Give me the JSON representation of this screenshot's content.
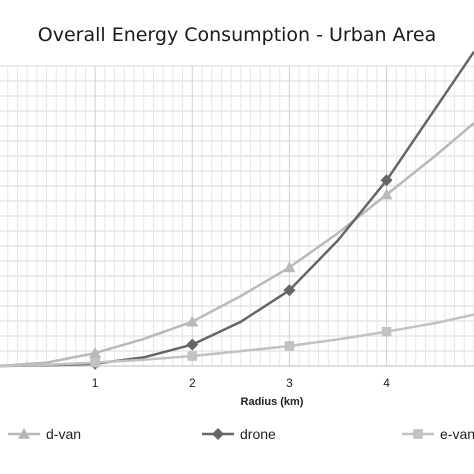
{
  "chart_data": {
    "type": "line",
    "title": "Overall Energy Consumption - Urban Area",
    "xlabel": "Radius (km)",
    "ylabel": "",
    "x_ticks": [
      "1",
      "2",
      "3",
      "4"
    ],
    "xlim": [
      0,
      4.9
    ],
    "grid": true,
    "legend_position": "bottom",
    "series": [
      {
        "name": "d-van",
        "marker": "triangle",
        "color": "#b9b9b9",
        "x": [
          1,
          2,
          3,
          4
        ],
        "values": [
          0.45,
          1.55,
          3.45,
          6.0
        ],
        "curve": [
          [
            0,
            0
          ],
          [
            0.5,
            0.12
          ],
          [
            1,
            0.45
          ],
          [
            1.5,
            0.95
          ],
          [
            2,
            1.55
          ],
          [
            2.5,
            2.45
          ],
          [
            3,
            3.45
          ],
          [
            3.5,
            4.65
          ],
          [
            4,
            6.0
          ],
          [
            4.5,
            7.35
          ],
          [
            4.9,
            8.5
          ]
        ]
      },
      {
        "name": "drone",
        "marker": "diamond",
        "color": "#666666",
        "x": [
          1,
          2,
          3,
          4
        ],
        "values": [
          0.08,
          0.75,
          2.65,
          6.5
        ],
        "curve": [
          [
            0,
            0
          ],
          [
            0.5,
            0.02
          ],
          [
            1,
            0.08
          ],
          [
            1.5,
            0.3
          ],
          [
            2,
            0.75
          ],
          [
            2.5,
            1.55
          ],
          [
            3,
            2.65
          ],
          [
            3.5,
            4.4
          ],
          [
            4,
            6.5
          ],
          [
            4.5,
            9.0
          ],
          [
            4.9,
            11.0
          ]
        ]
      },
      {
        "name": "e-van",
        "marker": "square",
        "color": "#c2c2c2",
        "x": [
          1,
          2,
          3,
          4
        ],
        "values": [
          0.12,
          0.35,
          0.7,
          1.2
        ],
        "curve": [
          [
            0,
            0
          ],
          [
            0.5,
            0.04
          ],
          [
            1,
            0.12
          ],
          [
            1.5,
            0.22
          ],
          [
            2,
            0.35
          ],
          [
            2.5,
            0.52
          ],
          [
            3,
            0.7
          ],
          [
            3.5,
            0.93
          ],
          [
            4,
            1.2
          ],
          [
            4.5,
            1.5
          ],
          [
            4.9,
            1.8
          ]
        ]
      }
    ]
  }
}
